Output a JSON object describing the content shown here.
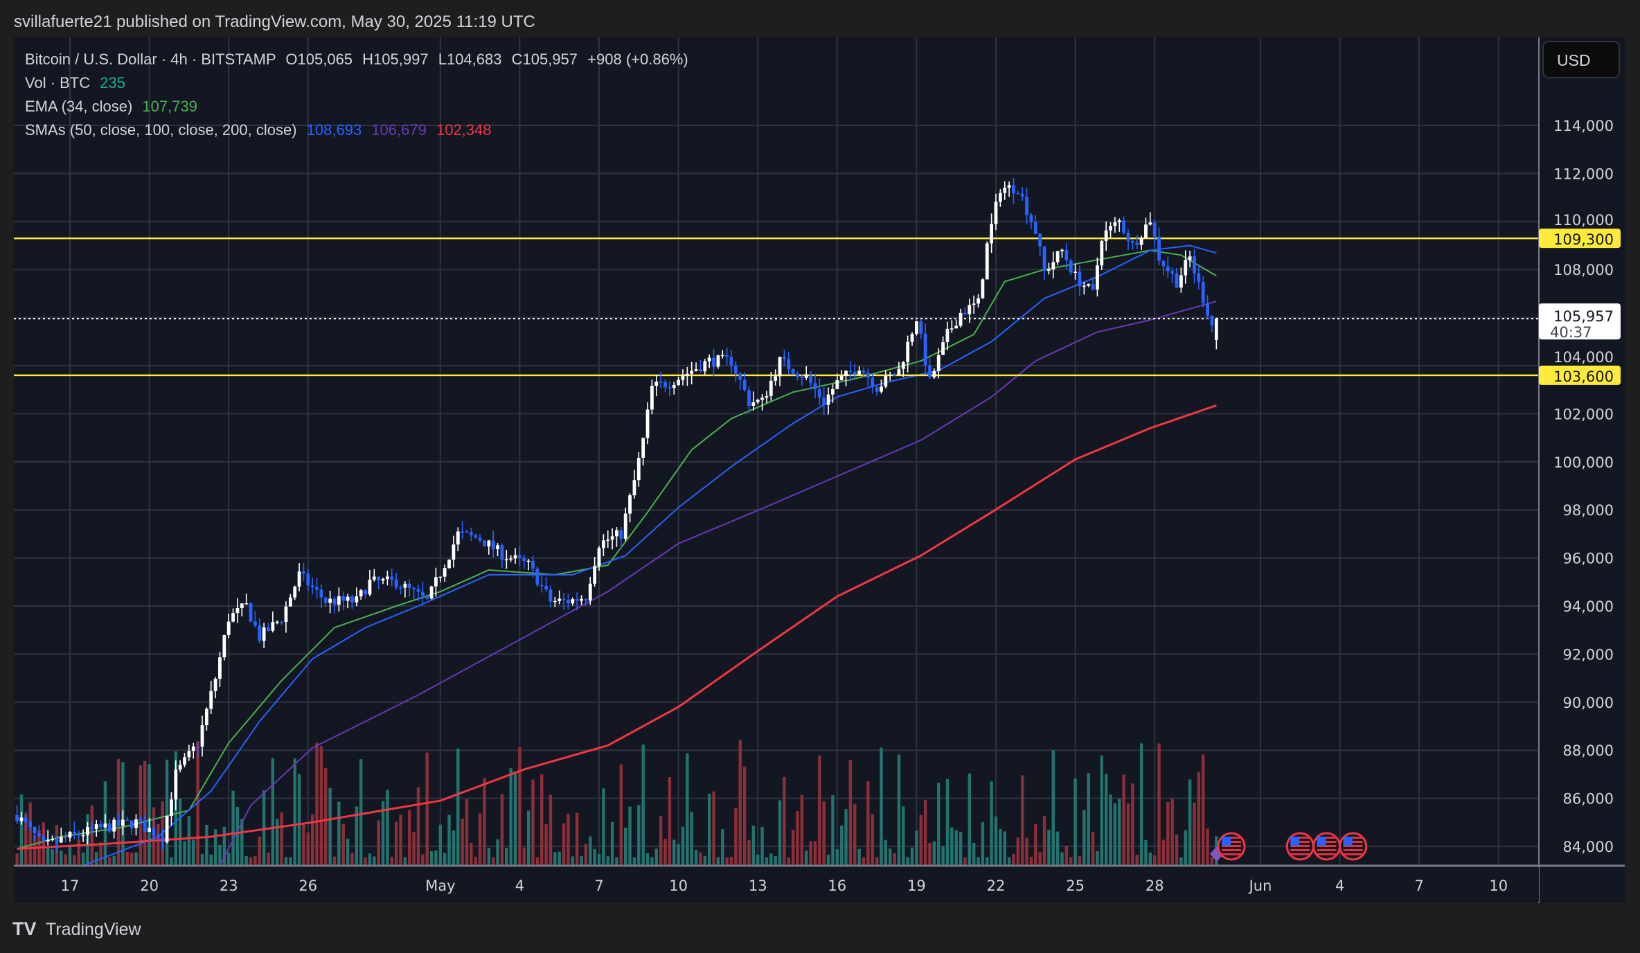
{
  "header": {
    "published": "svillafuerte21 published on TradingView.com, May 30, 2025 11:19 UTC"
  },
  "legend": {
    "symbol": "Bitcoin / U.S. Dollar · 4h · BITSTAMP",
    "open": "O105,065",
    "high": "H105,997",
    "low": "L104,683",
    "close": "C105,957",
    "change": "+908 (+0.86%)",
    "vol_label": "Vol · BTC",
    "vol_value": "235",
    "ema_label": "EMA (34, close)",
    "ema_value": "107,739",
    "sma_label": "SMAs (50, close, 100, close, 200, close)",
    "sma_values": [
      "108,693",
      "106,679",
      "102,348"
    ]
  },
  "price_axis": {
    "currency": "USD",
    "ticks": [
      "84,000",
      "86,000",
      "88,000",
      "90,000",
      "92,000",
      "94,000",
      "96,000",
      "98,000",
      "100,000",
      "102,000",
      "104,000",
      "108,000",
      "110,000",
      "112,000",
      "114,000"
    ],
    "level_labels": [
      "109,300",
      "103,600"
    ],
    "last_price": "105,957",
    "countdown": "40:37"
  },
  "time_axis": {
    "ticks": [
      "17",
      "20",
      "23",
      "26",
      "May",
      "4",
      "7",
      "10",
      "13",
      "16",
      "19",
      "22",
      "25",
      "28",
      "Jun",
      "4",
      "7",
      "10"
    ]
  },
  "footer": {
    "brand": "TradingView"
  },
  "colors": {
    "background": "#131722",
    "frame": "#1e1e1e",
    "grid": "#2f3341",
    "up_candle": "#ffffff",
    "down_candle": "#2962ff",
    "ema34": "#4caf50",
    "sma50": "#2962ff",
    "sma100": "#673ab7",
    "sma200": "#f23645",
    "level": "#ffeb3b",
    "vol_up": "#22756f",
    "vol_down": "#8c2f39",
    "event_flag": "#f23645",
    "event_marker": "#7e57c2"
  },
  "chart_data": {
    "type": "candlestick",
    "symbol": "BTCUSD",
    "interval": "4h",
    "ylim": [
      83200,
      115500
    ],
    "x_range": [
      "2025-04-15",
      "2025-06-11"
    ],
    "grid": true,
    "y_ticks": [
      84000,
      86000,
      88000,
      90000,
      92000,
      94000,
      96000,
      98000,
      100000,
      102000,
      104000,
      106000,
      108000,
      110000,
      112000,
      114000
    ],
    "x_ticks": [
      [
        "17",
        "2025-04-17"
      ],
      [
        "20",
        "2025-04-20"
      ],
      [
        "23",
        "2025-04-23"
      ],
      [
        "26",
        "2025-04-26"
      ],
      [
        "May",
        "2025-05-01"
      ],
      [
        "4",
        "2025-05-04"
      ],
      [
        "7",
        "2025-05-07"
      ],
      [
        "10",
        "2025-05-10"
      ],
      [
        "13",
        "2025-05-13"
      ],
      [
        "16",
        "2025-05-16"
      ],
      [
        "19",
        "2025-05-19"
      ],
      [
        "22",
        "2025-05-22"
      ],
      [
        "25",
        "2025-05-25"
      ],
      [
        "28",
        "2025-05-28"
      ],
      [
        "Jun",
        "2025-06-01"
      ],
      [
        "4",
        "2025-06-04"
      ],
      [
        "7",
        "2025-06-07"
      ],
      [
        "10",
        "2025-06-10"
      ]
    ],
    "last_candle": {
      "open": 105065,
      "high": 105997,
      "low": 104683,
      "close": 105957
    },
    "horizontal_levels": [
      109300,
      103600
    ],
    "approx_close_path": [
      [
        "04-15 00",
        85300
      ],
      [
        "04-16 00",
        84000
      ],
      [
        "04-17 00",
        84400
      ],
      [
        "04-18 08",
        84800
      ],
      [
        "04-19 12",
        85000
      ],
      [
        "04-20 12",
        84400
      ],
      [
        "04-21 00",
        87000
      ],
      [
        "04-21 20",
        88300
      ],
      [
        "04-22 12",
        91000
      ],
      [
        "04-23 00",
        93500
      ],
      [
        "04-23 16",
        94000
      ],
      [
        "04-24 04",
        92700
      ],
      [
        "04-25 00",
        93500
      ],
      [
        "04-25 16",
        95300
      ],
      [
        "04-26 16",
        94200
      ],
      [
        "04-27 20",
        94200
      ],
      [
        "04-28 08",
        95000
      ],
      [
        "04-29 08",
        95000
      ],
      [
        "04-30 12",
        94200
      ],
      [
        "05-01 08",
        96150
      ],
      [
        "05-01 16",
        97000
      ],
      [
        "05-02 12",
        96800
      ],
      [
        "05-03 08",
        96150
      ],
      [
        "05-04 08",
        95700
      ],
      [
        "05-05 04",
        94200
      ],
      [
        "05-05 20",
        94200
      ],
      [
        "05-06 12",
        94400
      ],
      [
        "05-07 00",
        96600
      ],
      [
        "05-07 20",
        97000
      ],
      [
        "05-08 08",
        99200
      ],
      [
        "05-08 16",
        100900
      ],
      [
        "05-09 00",
        103100
      ],
      [
        "05-09 16",
        103300
      ],
      [
        "05-10 12",
        103800
      ],
      [
        "05-11 04",
        104200
      ],
      [
        "05-12 00",
        104200
      ],
      [
        "05-12 16",
        102500
      ],
      [
        "05-13 04",
        102500
      ],
      [
        "05-13 20",
        104200
      ],
      [
        "05-14 20",
        103500
      ],
      [
        "05-15 12",
        102500
      ],
      [
        "05-16 00",
        103300
      ],
      [
        "05-16 20",
        104000
      ],
      [
        "05-17 12",
        103100
      ],
      [
        "05-18 08",
        103800
      ],
      [
        "05-19 00",
        106000
      ],
      [
        "05-19 12",
        103300
      ],
      [
        "05-20 04",
        105300
      ],
      [
        "05-20 16",
        106200
      ],
      [
        "05-21 08",
        106600
      ],
      [
        "05-21 16",
        109000
      ],
      [
        "05-22 04",
        111400
      ],
      [
        "05-22 20",
        111400
      ],
      [
        "05-23 12",
        109600
      ],
      [
        "05-23 20",
        107900
      ],
      [
        "05-24 12",
        108800
      ],
      [
        "05-25 00",
        107700
      ],
      [
        "05-25 16",
        107000
      ],
      [
        "05-26 00",
        109400
      ],
      [
        "05-26 16",
        110000
      ],
      [
        "05-27 04",
        109000
      ],
      [
        "05-27 20",
        110100
      ],
      [
        "05-28 04",
        108500
      ],
      [
        "05-28 20",
        107500
      ],
      [
        "05-29 08",
        108500
      ],
      [
        "05-29 20",
        106800
      ],
      [
        "05-30 04",
        105700
      ],
      [
        "05-30 08",
        105957
      ]
    ],
    "series": [
      {
        "name": "EMA (34, close)",
        "color": "#4caf50",
        "last": 107739,
        "points": [
          [
            "04-15 00",
            83900
          ],
          [
            "04-16 16",
            84400
          ],
          [
            "04-19 00",
            84800
          ],
          [
            "04-21 12",
            85500
          ],
          [
            "04-23 00",
            88300
          ],
          [
            "04-25 00",
            90900
          ],
          [
            "04-27 00",
            93100
          ],
          [
            "04-29 08",
            94000
          ],
          [
            "05-01 00",
            94600
          ],
          [
            "05-02 20",
            95500
          ],
          [
            "05-05 08",
            95300
          ],
          [
            "05-07 08",
            95700
          ],
          [
            "05-08 20",
            97900
          ],
          [
            "05-10 12",
            100500
          ],
          [
            "05-12 00",
            101800
          ],
          [
            "05-14 08",
            102900
          ],
          [
            "05-16 20",
            103500
          ],
          [
            "05-19 04",
            104200
          ],
          [
            "05-21 04",
            105300
          ],
          [
            "05-22 08",
            107500
          ],
          [
            "05-23 20",
            108000
          ],
          [
            "05-25 20",
            108400
          ],
          [
            "05-27 20",
            108800
          ],
          [
            "05-29 00",
            108600
          ],
          [
            "05-30 08",
            107739
          ]
        ]
      },
      {
        "name": "SMA 50",
        "color": "#2962ff",
        "last": 108693,
        "points": [
          [
            "04-17 12",
            83200
          ],
          [
            "04-20 08",
            84400
          ],
          [
            "04-22 08",
            86300
          ],
          [
            "04-24 04",
            89200
          ],
          [
            "04-26 04",
            91800
          ],
          [
            "04-28 04",
            93100
          ],
          [
            "04-30 04",
            94000
          ],
          [
            "05-02 20",
            95300
          ],
          [
            "05-06 00",
            95300
          ],
          [
            "05-08 00",
            96100
          ],
          [
            "05-10 00",
            98100
          ],
          [
            "05-12 00",
            99800
          ],
          [
            "05-14 08",
            101600
          ],
          [
            "05-16 00",
            102700
          ],
          [
            "05-17 20",
            103300
          ],
          [
            "05-19 20",
            103800
          ],
          [
            "05-21 20",
            105000
          ],
          [
            "05-23 20",
            106800
          ],
          [
            "05-25 20",
            107700
          ],
          [
            "05-27 20",
            108800
          ],
          [
            "05-29 08",
            109000
          ],
          [
            "05-30 08",
            108693
          ]
        ]
      },
      {
        "name": "SMA 100",
        "color": "#673ab7",
        "last": 106679,
        "points": [
          [
            "04-22 16",
            83200
          ],
          [
            "04-23 20",
            85700
          ],
          [
            "04-26 04",
            88100
          ],
          [
            "04-30 04",
            90300
          ],
          [
            "05-04 04",
            92700
          ],
          [
            "05-07 08",
            94600
          ],
          [
            "05-10 00",
            96600
          ],
          [
            "05-12 20",
            97900
          ],
          [
            "05-16 00",
            99400
          ],
          [
            "05-19 04",
            100900
          ],
          [
            "05-21 20",
            102700
          ],
          [
            "05-23 12",
            104200
          ],
          [
            "05-25 20",
            105400
          ],
          [
            "05-27 20",
            105900
          ],
          [
            "05-30 08",
            106679
          ]
        ]
      },
      {
        "name": "SMA 200",
        "color": "#f23645",
        "last": 102348,
        "points": [
          [
            "04-15 00",
            83900
          ],
          [
            "04-18 08",
            84100
          ],
          [
            "04-22 08",
            84400
          ],
          [
            "04-26 04",
            85000
          ],
          [
            "05-01 00",
            85900
          ],
          [
            "05-04 04",
            87200
          ],
          [
            "05-07 08",
            88200
          ],
          [
            "05-10 00",
            89800
          ],
          [
            "05-12 20",
            92000
          ],
          [
            "05-16 00",
            94400
          ],
          [
            "05-19 04",
            96100
          ],
          [
            "05-21 20",
            97900
          ],
          [
            "05-25 00",
            100100
          ],
          [
            "05-27 20",
            101400
          ],
          [
            "05-30 08",
            102348
          ]
        ]
      }
    ],
    "events": {
      "us_flags": [
        "2025-05-30",
        "2025-06-02",
        "2025-06-03",
        "2025-06-04"
      ],
      "marker": "2025-05-30"
    }
  }
}
